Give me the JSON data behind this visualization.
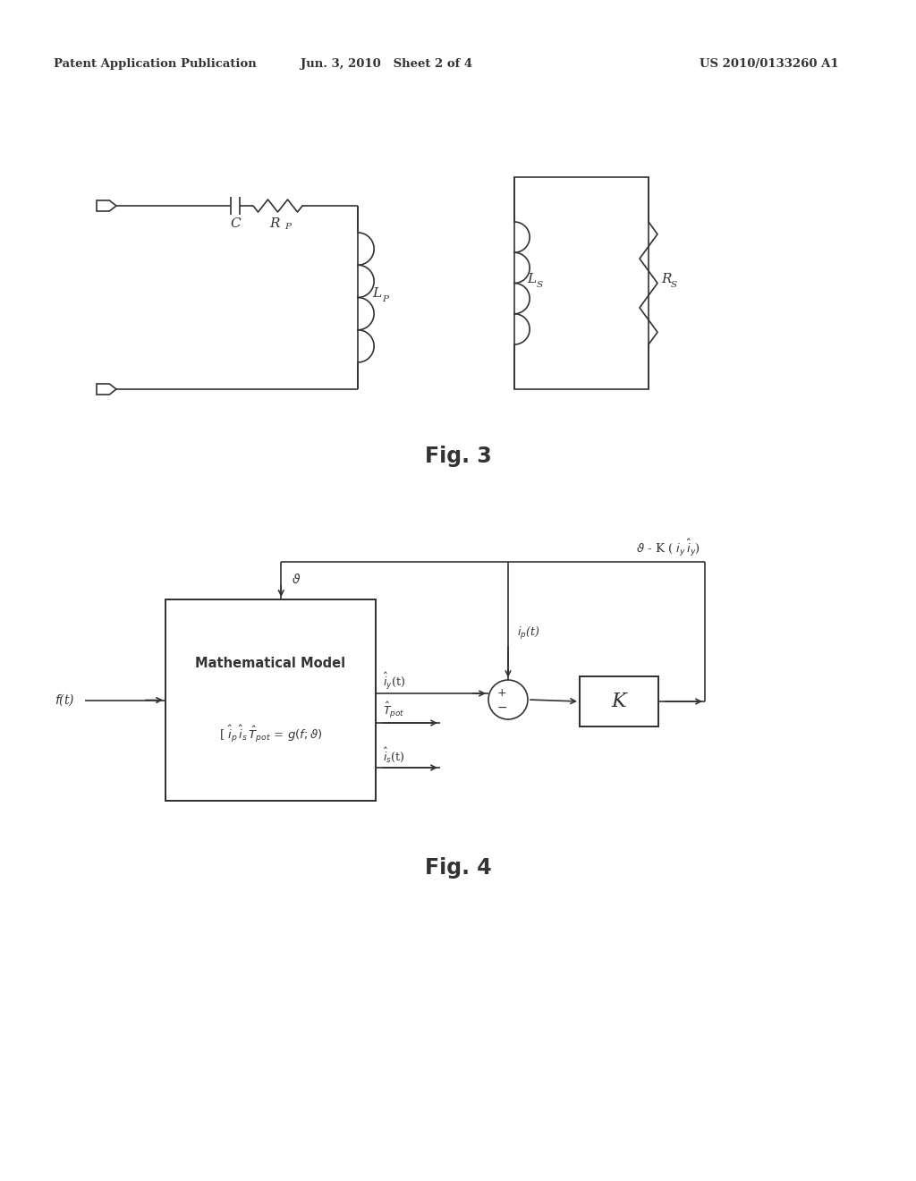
{
  "header_left": "Patent Application Publication",
  "header_mid": "Jun. 3, 2010   Sheet 2 of 4",
  "header_right": "US 2010/0133260 A1",
  "fig3_label": "Fig. 3",
  "fig4_label": "Fig. 4",
  "bg_color": "#ffffff",
  "line_color": "#333333",
  "lw": 1.2
}
